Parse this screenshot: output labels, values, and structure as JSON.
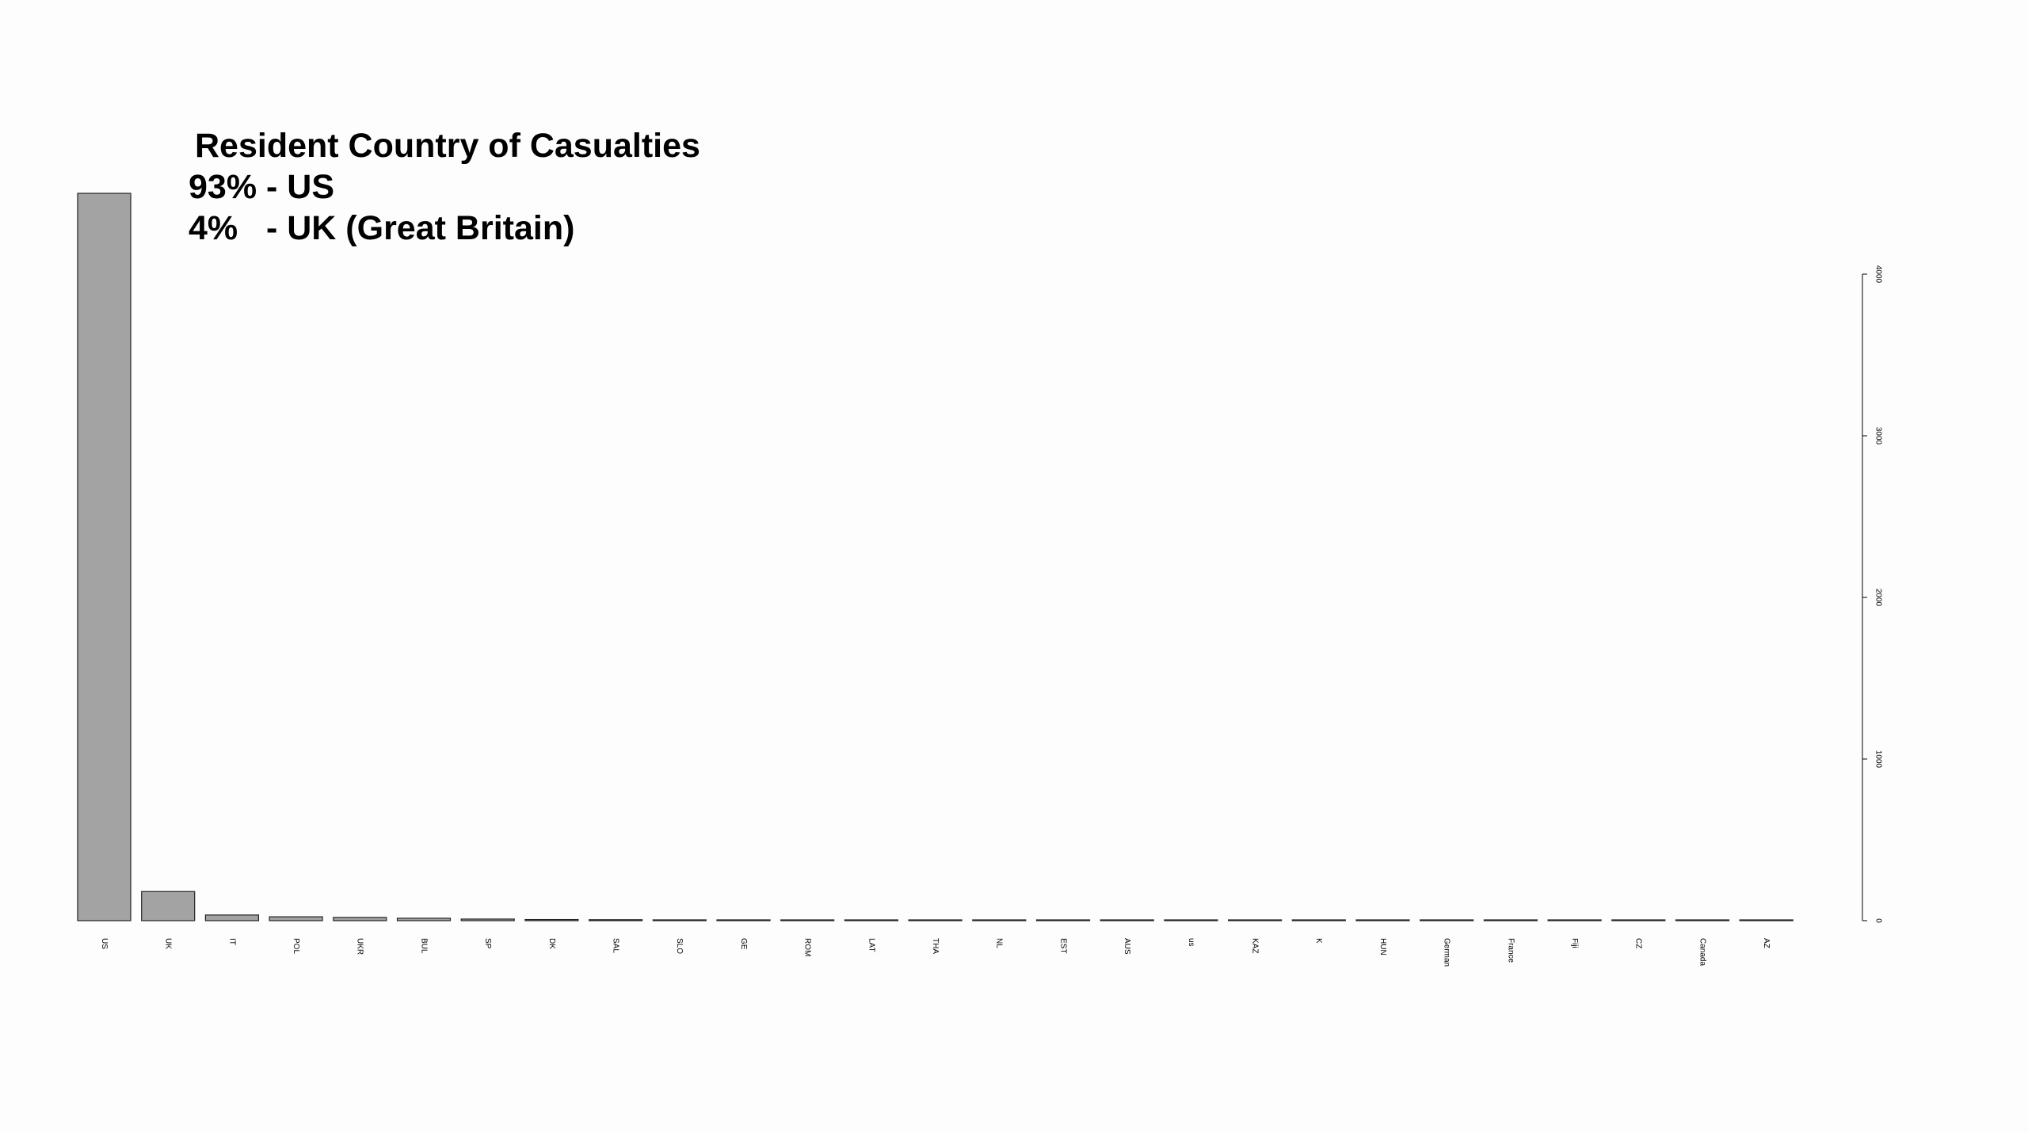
{
  "chart_data": {
    "type": "bar",
    "title": "Resident Country of Casualties",
    "annotations": [
      "93% - US",
      "4%   - UK (Great Britain)"
    ],
    "xlabel": "",
    "ylabel": "",
    "ylim": [
      0,
      4000
    ],
    "y_ticks": [
      0,
      1000,
      2000,
      3000,
      4000
    ],
    "y_axis_position": "right",
    "grid": false,
    "colors": {
      "bar_fill": "#a3a3a3",
      "bar_stroke": "#222222"
    },
    "categories": [
      "US",
      "UK",
      "IT",
      "POL",
      "UKR",
      "BUL",
      "SP",
      "DK",
      "SAL",
      "SLO",
      "GE",
      "ROM",
      "LAT",
      "THA",
      "NL",
      "EST",
      "AUS",
      "us",
      "KAZ",
      "K",
      "HUN",
      "German",
      "France",
      "Fiji",
      "CZ",
      "Canada",
      "AZ"
    ],
    "values": [
      4500,
      180,
      35,
      24,
      20,
      15,
      10,
      7,
      6,
      5,
      5,
      4,
      4,
      3,
      3,
      3,
      2,
      2,
      2,
      1,
      1,
      1,
      1,
      1,
      1,
      1,
      1
    ]
  }
}
